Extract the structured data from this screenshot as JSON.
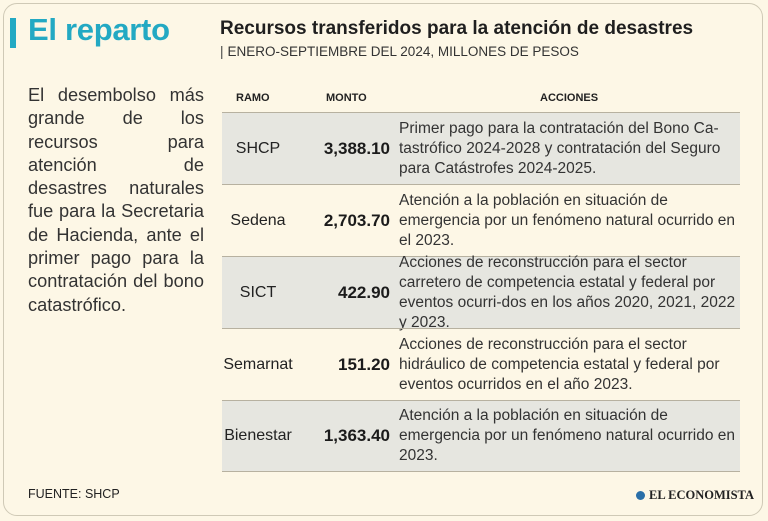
{
  "section": {
    "title": "El reparto"
  },
  "intro": "El desembolso más grande de los recursos para atención de desastres naturales fue para la Secretaria de Hacienda, ante el primer pago para la contratación del bono catastrófico.",
  "chart": {
    "title": "Recursos transferidos para la atención de desastres",
    "subtitle": "ENERO-SEPTIEMBRE DEL 2024, MILLONES DE PESOS"
  },
  "table": {
    "headers": {
      "ramo": "RAMO",
      "monto": "MONTO",
      "acciones": "ACCIONES"
    },
    "rows": [
      {
        "ramo": "SHCP",
        "monto": "3,388.10",
        "acciones": "Primer pago para la contratación del Bono Ca-tastrófico 2024-2028 y contratación del Seguro para Catástrofes 2024-2025."
      },
      {
        "ramo": "Sedena",
        "monto": "2,703.70",
        "acciones": "Atención a la población en situación de emergencia por un fenómeno natural ocurrido en el 2023."
      },
      {
        "ramo": "SICT",
        "monto": "422.90",
        "acciones": "Acciones de reconstrucción para el sector carretero de competencia estatal y federal por eventos ocurri-dos en los años 2020, 2021, 2022 y 2023."
      },
      {
        "ramo": "Semarnat",
        "monto": "151.20",
        "acciones": "Acciones de reconstrucción para el sector hidráulico de competencia estatal y federal por eventos ocurridos en el año 2023."
      },
      {
        "ramo": "Bienestar",
        "monto": "1,363.40",
        "acciones": "Atención a la población en situación de emergencia por un fenómeno natural ocurrido en 2023."
      }
    ]
  },
  "footer": {
    "source": "FUENTE: SHCP",
    "brand": "EL ECONOMISTA"
  },
  "colors": {
    "accent": "#23a9c3",
    "background": "#fdf7e6",
    "row_shade": "#e6e6e0"
  }
}
